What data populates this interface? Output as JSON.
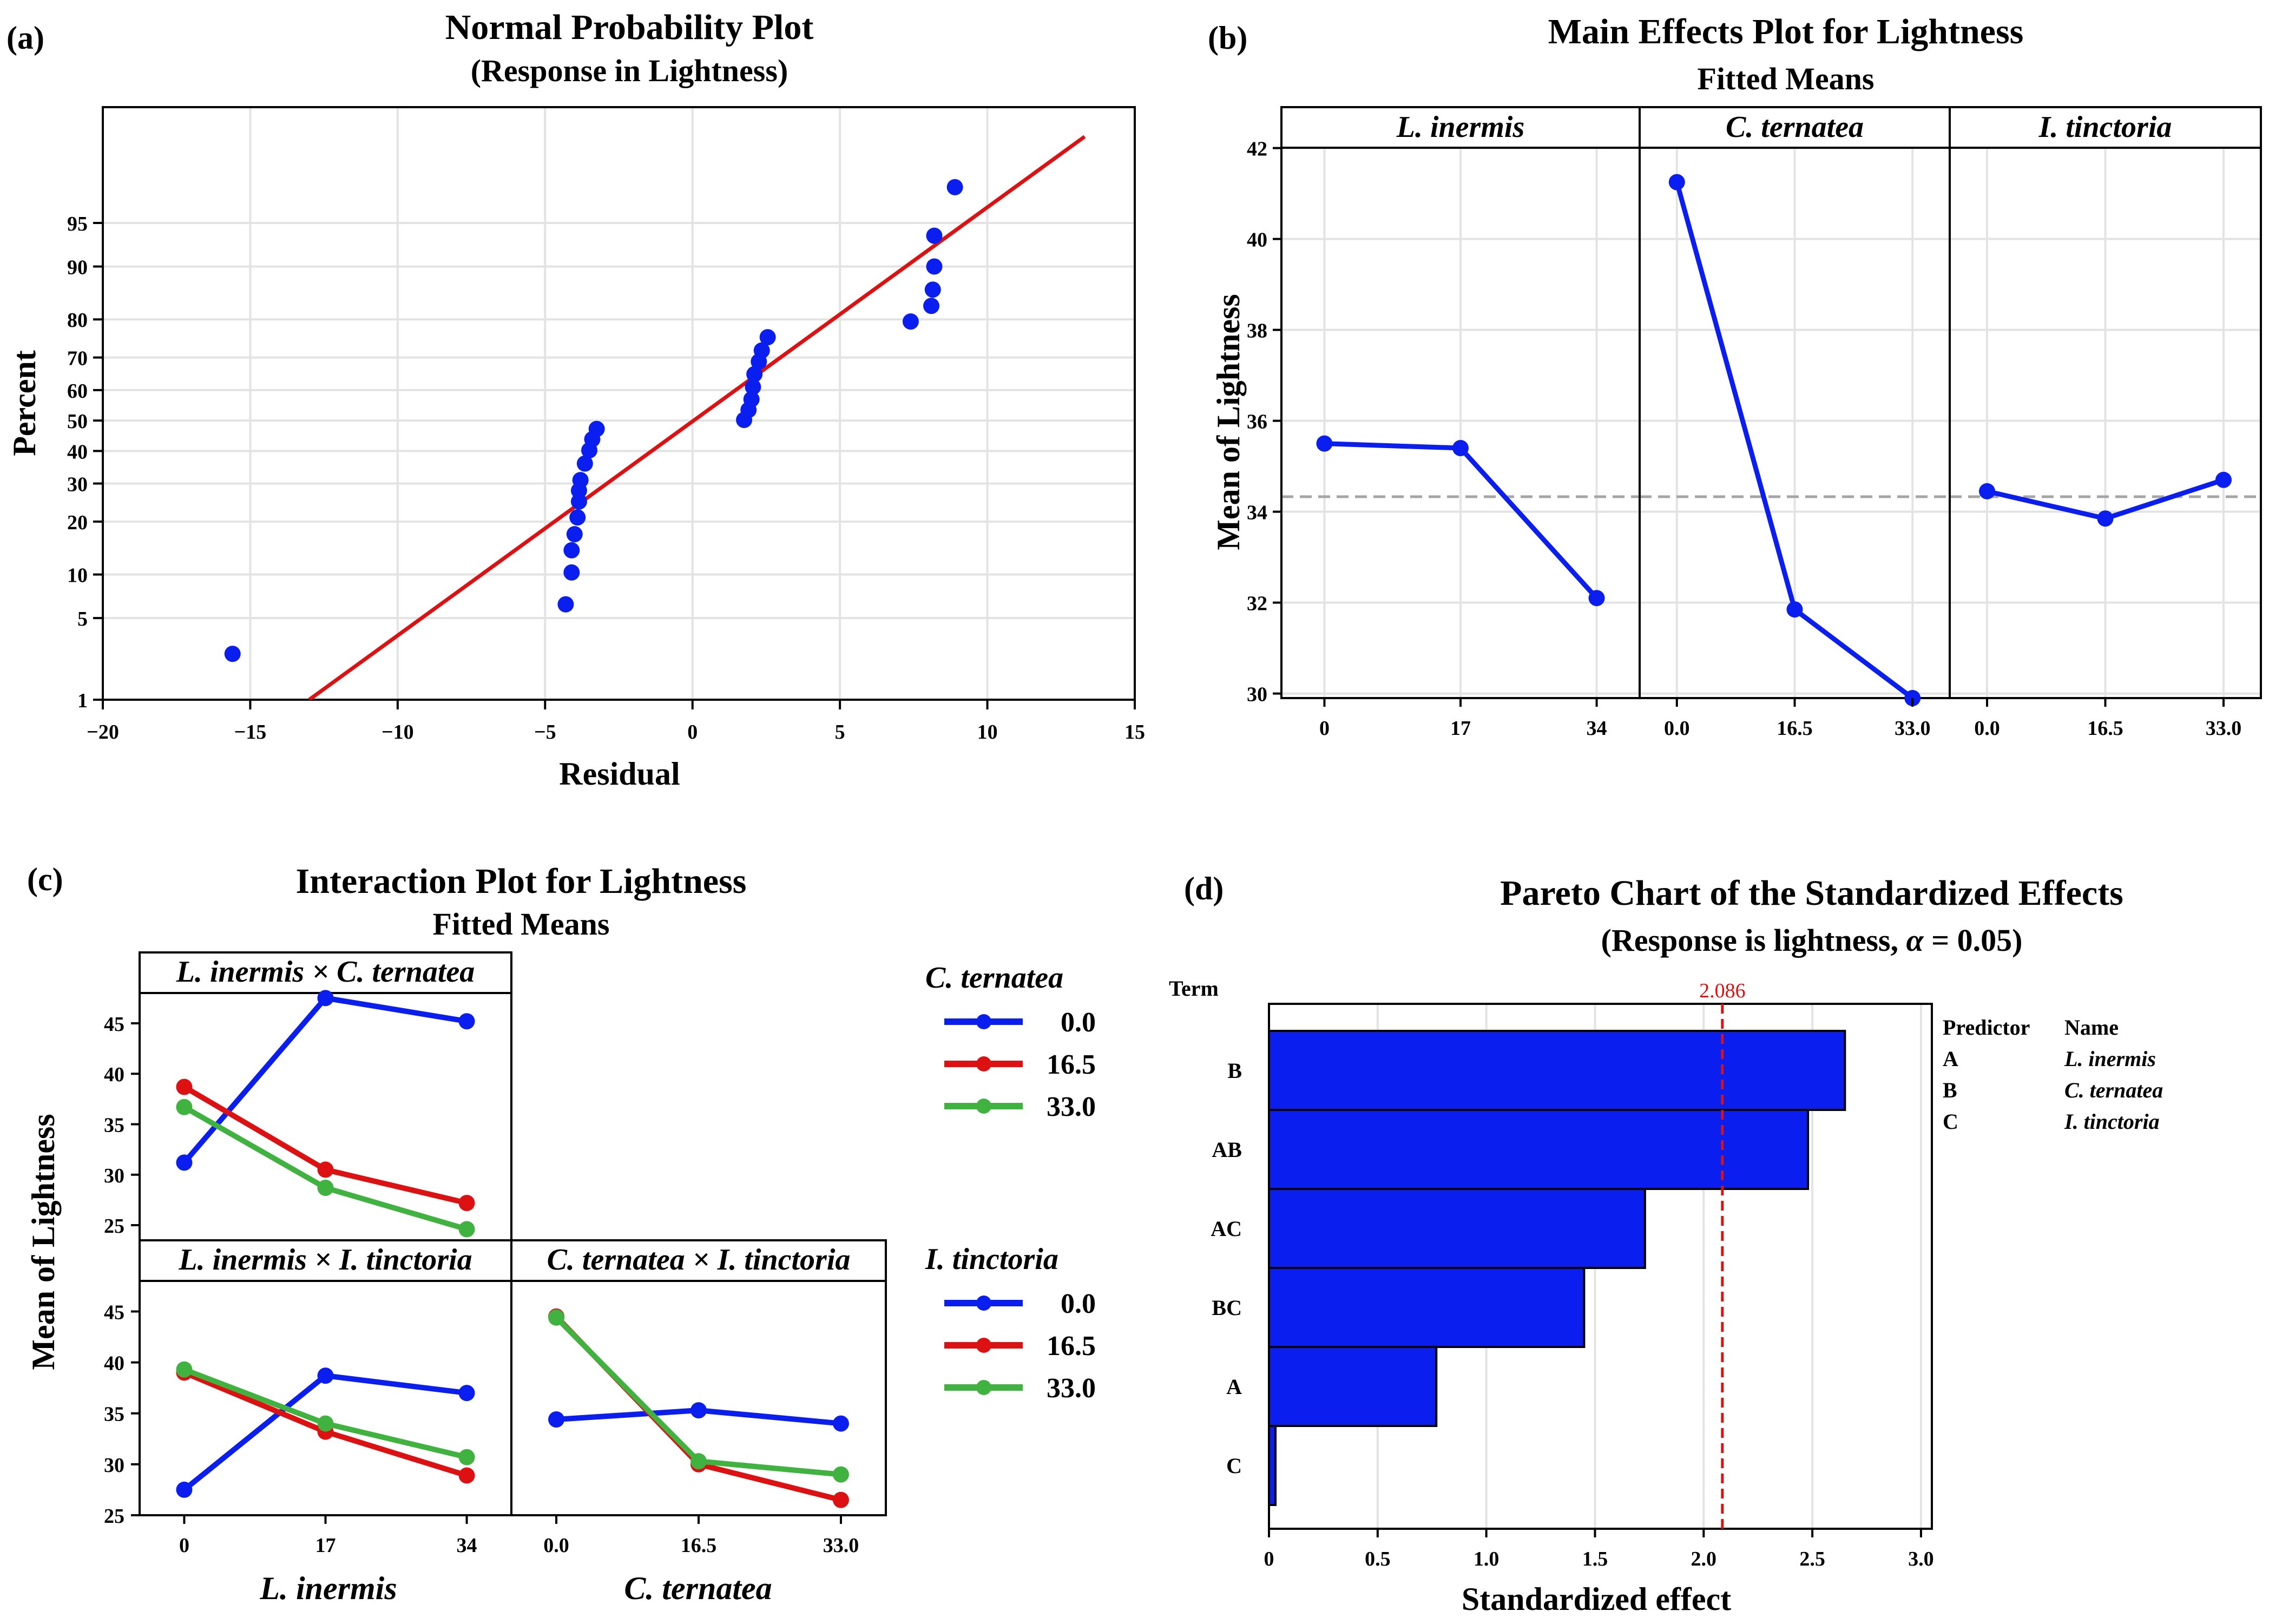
{
  "colors": {
    "blue": "#0a1ef0",
    "red": "#dd1111",
    "green": "#3fb23f",
    "grid": "#e3e3e3",
    "mean_line": "#a5a5a5",
    "bar": "#0a1ef0"
  },
  "panel_labels": {
    "a": "(a)",
    "b": "(b)",
    "c": "(c)",
    "d": "(d)"
  },
  "chart_data": [
    {
      "panel": "a",
      "type": "scatter",
      "title": "Normal Probability Plot",
      "subtitle": "(Response in Lightness)",
      "xlabel": "Residual",
      "ylabel": "Percent",
      "xlim": [
        -20,
        15
      ],
      "xticks": [
        -20,
        -15,
        -10,
        -5,
        0,
        5,
        10,
        15
      ],
      "xtick_labels": [
        "−20",
        "−15",
        "−10",
        "−5",
        "0",
        "5",
        "10",
        "15"
      ],
      "yticks": [
        1,
        5,
        10,
        20,
        30,
        40,
        50,
        60,
        70,
        80,
        90,
        95
      ],
      "ytick_labels": [
        "1",
        "5",
        "10",
        "20",
        "30",
        "40",
        "50",
        "60",
        "70",
        "80",
        "90",
        "95"
      ],
      "points": [
        [
          -15.6,
          2.6
        ],
        [
          -4.3,
          6.3
        ],
        [
          -4.1,
          10.3
        ],
        [
          -4.1,
          14.0
        ],
        [
          -4.0,
          17.2
        ],
        [
          -3.9,
          21.0
        ],
        [
          -3.85,
          25.0
        ],
        [
          -3.85,
          28.0
        ],
        [
          -3.8,
          31.0
        ],
        [
          -3.65,
          36.0
        ],
        [
          -3.5,
          40.2
        ],
        [
          -3.4,
          43.8
        ],
        [
          -3.25,
          47.2
        ],
        [
          1.75,
          50.2
        ],
        [
          1.9,
          53.5
        ],
        [
          2.0,
          57.0
        ],
        [
          2.05,
          61.0
        ],
        [
          2.1,
          65.0
        ],
        [
          2.25,
          68.8
        ],
        [
          2.35,
          72.0
        ],
        [
          2.55,
          75.6
        ],
        [
          7.4,
          79.5
        ],
        [
          8.1,
          83.0
        ],
        [
          8.15,
          86.2
        ],
        [
          8.2,
          90.0
        ],
        [
          8.2,
          93.8
        ],
        [
          8.9,
          97.4
        ]
      ],
      "fit_line": {
        "x": [
          -13.0,
          13.3
        ],
        "p": [
          1,
          99.1
        ]
      }
    },
    {
      "panel": "b",
      "type": "line",
      "title": "Main Effects Plot for Lightness",
      "subtitle": "Fitted Means",
      "ylabel": "Mean of Lightness",
      "ylim": [
        29.9,
        42.9
      ],
      "yticks": [
        30,
        32,
        34,
        36,
        38,
        40,
        42
      ],
      "grand_mean": 34.33,
      "facets": [
        {
          "name": "L. inermis",
          "x": [
            "0",
            "17",
            "34"
          ],
          "values": [
            35.5,
            35.4,
            32.1
          ]
        },
        {
          "name": "C. ternatea",
          "x": [
            "0.0",
            "16.5",
            "33.0"
          ],
          "values": [
            41.25,
            31.85,
            29.9
          ]
        },
        {
          "name": "I. tinctoria",
          "x": [
            "0.0",
            "16.5",
            "33.0"
          ],
          "values": [
            34.45,
            33.85,
            34.7
          ]
        }
      ]
    },
    {
      "panel": "c",
      "type": "line",
      "title": "Interaction Plot for Lightness",
      "subtitle": "Fitted Means",
      "ylabel": "Mean of  Lightness",
      "ylim_top": [
        23.5,
        48.0
      ],
      "ylim_bottom": [
        25.0,
        48.0
      ],
      "yticks": [
        25,
        30,
        35,
        40,
        45
      ],
      "legend_top": {
        "title": "C. ternatea",
        "entries": [
          "0.0",
          "16.5",
          "33.0"
        ]
      },
      "legend_bottom": {
        "title": "I. tinctoria",
        "entries": [
          "0.0",
          "16.5",
          "33.0"
        ]
      },
      "xlabels": [
        "L. inermis",
        "C. ternatea"
      ],
      "panels": [
        {
          "name": "L. inermis × C. ternatea",
          "x": [
            "0",
            "17",
            "34"
          ],
          "series": [
            {
              "name": "0.0",
              "values": [
                31.2,
                47.5,
                45.2
              ]
            },
            {
              "name": "16.5",
              "values": [
                38.7,
                30.5,
                27.2
              ]
            },
            {
              "name": "33.0",
              "values": [
                36.7,
                28.7,
                24.6
              ]
            }
          ]
        },
        {
          "name": "L. inermis × I. tinctoria",
          "x": [
            "0",
            "17",
            "34"
          ],
          "series": [
            {
              "name": "0.0",
              "values": [
                27.5,
                38.7,
                37.0
              ]
            },
            {
              "name": "16.5",
              "values": [
                39.0,
                33.2,
                28.9
              ]
            },
            {
              "name": "33.0",
              "values": [
                39.3,
                34.0,
                30.7
              ]
            }
          ]
        },
        {
          "name": "C. ternatea × I. tinctoria",
          "x": [
            "0.0",
            "16.5",
            "33.0"
          ],
          "series": [
            {
              "name": "0.0",
              "values": [
                34.4,
                35.3,
                34.0
              ]
            },
            {
              "name": "16.5",
              "values": [
                44.5,
                30.0,
                26.5
              ]
            },
            {
              "name": "33.0",
              "values": [
                44.4,
                30.3,
                29.0
              ]
            }
          ]
        }
      ]
    },
    {
      "panel": "d",
      "type": "bar",
      "orientation": "horizontal",
      "title": "Pareto Chart of the Standardized Effects",
      "subtitle_prefix": "(Response is lightness, ",
      "subtitle_alpha": "α",
      "subtitle_suffix": " = 0.05)",
      "xlabel": "Standardized effect",
      "ylabel": "Term",
      "xlim": [
        0,
        3.05
      ],
      "xticks": [
        0,
        0.5,
        1.0,
        1.5,
        2.0,
        2.5,
        3.0
      ],
      "xtick_labels": [
        "0",
        "0.5",
        "1.0",
        "1.5",
        "2.0",
        "2.5",
        "3.0"
      ],
      "categories": [
        "B",
        "AB",
        "AC",
        "BC",
        "A",
        "C"
      ],
      "values": [
        2.65,
        2.48,
        1.73,
        1.45,
        0.77,
        0.03
      ],
      "reference_line": 2.086,
      "reference_label": "2.086",
      "predictor_table": {
        "headers": [
          "Predictor",
          "Name"
        ],
        "rows": [
          [
            "A",
            "L. inermis"
          ],
          [
            "B",
            "C. ternatea"
          ],
          [
            "C",
            "I. tinctoria"
          ]
        ]
      }
    }
  ]
}
